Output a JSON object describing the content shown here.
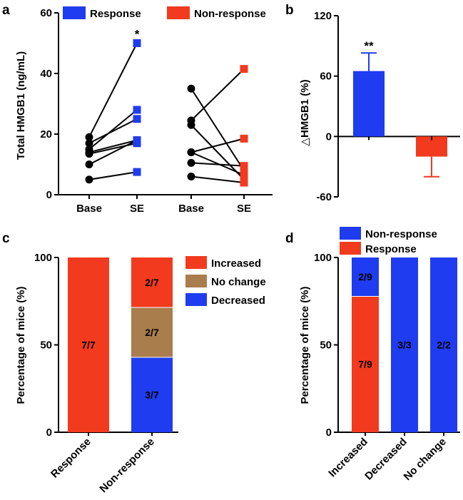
{
  "chart_data": [
    {
      "panel": "a",
      "type": "scatter",
      "ylabel": "Total HMGB1 (ng/mL)",
      "ylim": [
        0,
        60
      ],
      "yticks": [
        0,
        20,
        40,
        60
      ],
      "categories": [
        "Base",
        "SE",
        "Base",
        "SE"
      ],
      "legend": [
        {
          "name": "Response",
          "color": "#1f3cf0"
        },
        {
          "name": "Non-response",
          "color": "#f23a1e"
        }
      ],
      "groups": [
        {
          "name": "Response",
          "color": "#1f3cf0",
          "significance": "*",
          "pairs": [
            [
              19,
              50
            ],
            [
              17,
              25
            ],
            [
              15,
              28
            ],
            [
              14,
              18
            ],
            [
              13.5,
              17
            ],
            [
              10,
              18
            ],
            [
              5,
              7.5
            ]
          ]
        },
        {
          "name": "Non-response",
          "color": "#f23a1e",
          "pairs": [
            [
              35,
              8
            ],
            [
              24.5,
              41.5
            ],
            [
              23,
              5
            ],
            [
              14,
              18.5
            ],
            [
              14,
              6.5
            ],
            [
              10.5,
              9.5
            ],
            [
              6,
              4
            ]
          ]
        }
      ]
    },
    {
      "panel": "b",
      "type": "bar",
      "ylabel": "△HMGB1 (%)",
      "ylim": [
        -60,
        120
      ],
      "yticks": [
        -60,
        0,
        60,
        120
      ],
      "categories": [
        "Response",
        "Non-response"
      ],
      "values": [
        65,
        -20
      ],
      "errors": [
        18,
        20
      ],
      "colors": [
        "#1f3cf0",
        "#f23a1e"
      ],
      "significance": [
        "**",
        ""
      ]
    },
    {
      "panel": "c",
      "type": "bar",
      "stacked": true,
      "ylabel": "Percentage of mice (%)",
      "ylim": [
        0,
        100
      ],
      "yticks": [
        0,
        50,
        100
      ],
      "categories": [
        "Response",
        "Non-response"
      ],
      "series": [
        {
          "name": "Decreased",
          "color": "#1f3cf0",
          "values": [
            0,
            42.86
          ],
          "labels": [
            "",
            "3/7"
          ]
        },
        {
          "name": "No change",
          "color": "#a97d4c",
          "values": [
            0,
            28.57
          ],
          "labels": [
            "",
            "2/7"
          ]
        },
        {
          "name": "Increased",
          "color": "#f23a1e",
          "values": [
            100,
            28.57
          ],
          "labels": [
            "7/7",
            "2/7"
          ]
        }
      ],
      "legend_order": [
        "Increased",
        "No change",
        "Decreased"
      ]
    },
    {
      "panel": "d",
      "type": "bar",
      "stacked": true,
      "ylabel": "Percentage of mice (%)",
      "ylim": [
        0,
        100
      ],
      "yticks": [
        0,
        50,
        100
      ],
      "categories": [
        "Increased",
        "Decreased",
        "No change"
      ],
      "series": [
        {
          "name": "Response",
          "color": "#f23a1e",
          "values": [
            77.78,
            0,
            0
          ],
          "labels": [
            "7/9",
            "",
            ""
          ]
        },
        {
          "name": "Non-response",
          "color": "#1f3cf0",
          "values": [
            22.22,
            100,
            100
          ],
          "labels": [
            "2/9",
            "3/3",
            "2/2"
          ]
        }
      ],
      "legend_order": [
        "Non-response",
        "Response"
      ]
    }
  ]
}
